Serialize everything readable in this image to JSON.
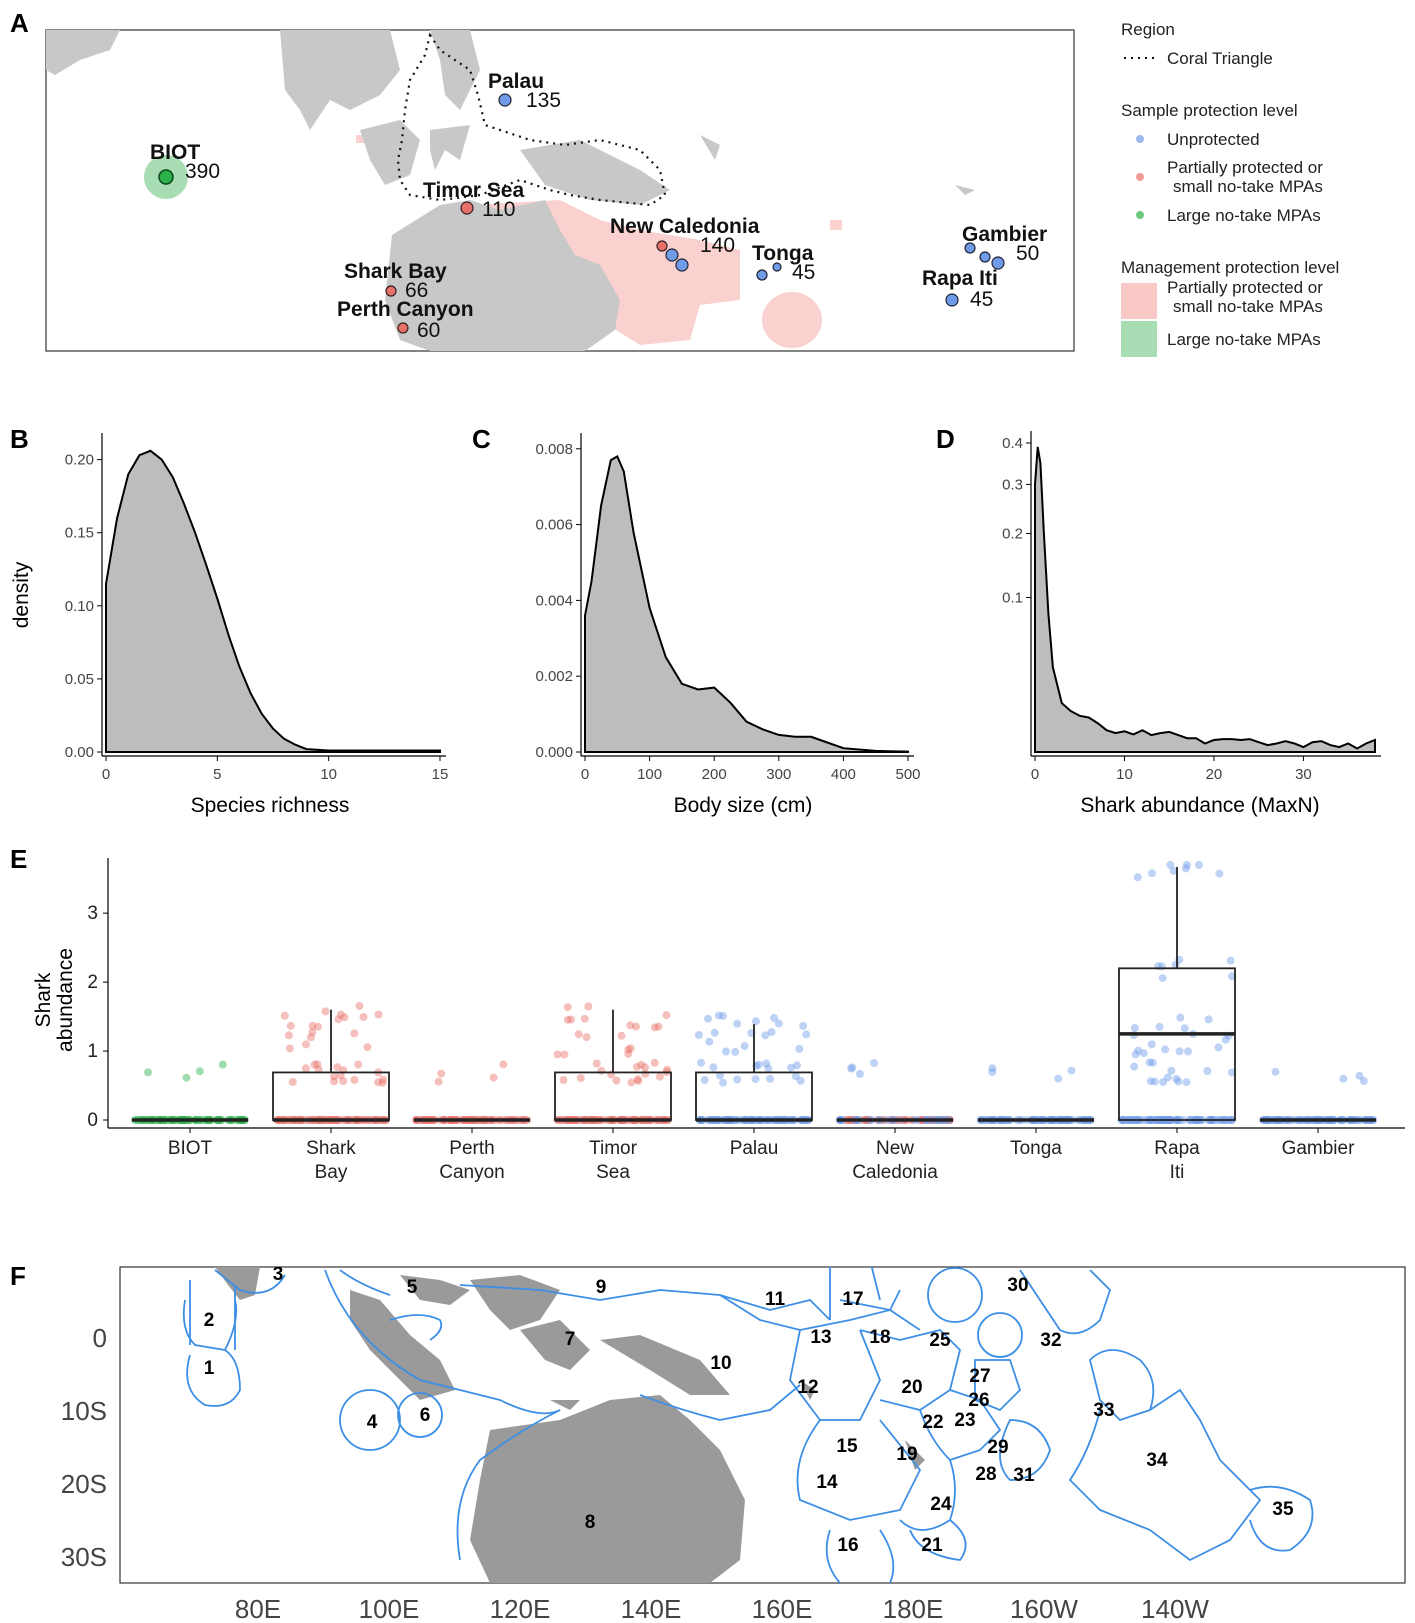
{
  "panel_labels": [
    "A",
    "B",
    "C",
    "D",
    "E",
    "F"
  ],
  "colors": {
    "unprotected": "#6f9be8",
    "partial": "#e8706b",
    "large": "#2cb24a",
    "partial_fill": "#f9c9c7",
    "large_fill": "#a8dcb2",
    "land": "#c8c8c8",
    "land_f": "#9a9a9a",
    "eco_line": "#3d8fe6",
    "density_fill": "#bdbdbd"
  },
  "legend": {
    "region_title": "Region",
    "region_item": "Coral Triangle",
    "sample_title": "Sample protection level",
    "sample_items": [
      "Unprotected",
      "Partially protected or",
      "small no-take MPAs",
      "Large no-take MPAs"
    ],
    "mgmt_title": "Management protection level",
    "mgmt_items": [
      "Partially protected or",
      "small no-take MPAs",
      "Large no-take MPAs"
    ]
  },
  "map_sites": [
    {
      "name": "BIOT",
      "count": "390",
      "protection": "large"
    },
    {
      "name": "Palau",
      "count": "135",
      "protection": "unprotected"
    },
    {
      "name": "Timor Sea",
      "count": "110",
      "protection": "partial"
    },
    {
      "name": "New Caledonia",
      "count": "140",
      "protection": "mixed"
    },
    {
      "name": "Tonga",
      "count": "45",
      "protection": "unprotected"
    },
    {
      "name": "Gambier",
      "count": "50",
      "protection": "unprotected"
    },
    {
      "name": "Rapa Iti",
      "count": "45",
      "protection": "unprotected"
    },
    {
      "name": "Shark Bay",
      "count": "66",
      "protection": "partial"
    },
    {
      "name": "Perth Canyon",
      "count": "60",
      "protection": "partial"
    }
  ],
  "chart_data": [
    {
      "type": "area",
      "panel": "B",
      "xlabel": "Species richness",
      "ylabel": "density",
      "xticks": [
        "0",
        "5",
        "10",
        "15"
      ],
      "yticks": [
        "0.00",
        "0.05",
        "0.10",
        "0.15",
        "0.20"
      ],
      "xlim": [
        0,
        15
      ],
      "ylim": [
        0,
        0.21
      ],
      "x": [
        0,
        0.5,
        1,
        1.5,
        2,
        2.5,
        3,
        3.5,
        4,
        4.5,
        5,
        5.5,
        6,
        6.5,
        7,
        7.5,
        8,
        8.5,
        9,
        10,
        11,
        12,
        13,
        14,
        15
      ],
      "y": [
        0.115,
        0.16,
        0.19,
        0.203,
        0.206,
        0.2,
        0.188,
        0.17,
        0.15,
        0.128,
        0.105,
        0.08,
        0.058,
        0.04,
        0.026,
        0.016,
        0.009,
        0.005,
        0.002,
        0.001,
        0.001,
        0.001,
        0.001,
        0.001,
        0.001
      ]
    },
    {
      "type": "area",
      "panel": "C",
      "xlabel": "Body size (cm)",
      "ylabel": "",
      "xticks": [
        "0",
        "100",
        "200",
        "300",
        "400",
        "500"
      ],
      "yticks": [
        "0.000",
        "0.002",
        "0.004",
        "0.006",
        "0.008"
      ],
      "xlim": [
        0,
        500
      ],
      "ylim": [
        0,
        0.0081
      ],
      "x": [
        0,
        10,
        25,
        40,
        50,
        60,
        75,
        100,
        125,
        150,
        175,
        200,
        225,
        250,
        275,
        300,
        325,
        350,
        375,
        400,
        450,
        500
      ],
      "y": [
        0.0036,
        0.0045,
        0.0065,
        0.0077,
        0.0078,
        0.0074,
        0.0058,
        0.0038,
        0.0025,
        0.0018,
        0.00165,
        0.0017,
        0.0013,
        0.0008,
        0.0006,
        0.00045,
        0.0004,
        0.0004,
        0.00025,
        0.0001,
        3e-05,
        1e-05
      ]
    },
    {
      "type": "area",
      "panel": "D",
      "xlabel": "Shark abundance (MaxN)",
      "ylabel": "",
      "xticks": [
        "0",
        "10",
        "20",
        "30"
      ],
      "yticks": [
        "0.1",
        "0.2",
        "0.3",
        "0.4"
      ],
      "xlim": [
        0,
        38
      ],
      "ylim": [
        0,
        0.4
      ],
      "scale": "sqrt",
      "x": [
        0,
        0.3,
        0.6,
        1,
        1.5,
        2,
        3,
        4,
        5,
        6,
        7,
        8,
        9,
        10,
        11,
        12,
        13,
        14,
        15,
        16,
        17,
        18,
        19,
        20,
        21,
        22,
        23,
        24,
        25,
        26,
        27,
        28,
        29,
        30,
        31,
        32,
        33,
        34,
        35,
        36,
        37,
        38
      ],
      "y": [
        0.3,
        0.39,
        0.35,
        0.2,
        0.08,
        0.03,
        0.01,
        0.007,
        0.0055,
        0.005,
        0.0035,
        0.002,
        0.0015,
        0.0018,
        0.0013,
        0.002,
        0.0012,
        0.0015,
        0.0017,
        0.0012,
        0.0008,
        0.0008,
        0.0003,
        0.0006,
        0.0007,
        0.0007,
        0.0006,
        0.0007,
        0.0004,
        0.0002,
        0.0003,
        0.0005,
        0.0003,
        0.0001,
        0.0004,
        0.0005,
        0.0002,
        0.0001,
        0.0003,
        5e-05,
        0.0003,
        0.0006
      ]
    },
    {
      "type": "box",
      "panel": "E",
      "ylabel": "Shark abundance",
      "yticks": [
        "0",
        "1",
        "2",
        "3"
      ],
      "ylim": [
        0,
        3.8
      ],
      "scale": "sqrt-transformed",
      "categories": [
        "BIOT",
        "Shark\nBay",
        "Perth\nCanyon",
        "Timor\nSea",
        "Palau",
        "New\nCaledonia",
        "Tonga",
        "Rapa\nIti",
        "Gambier"
      ],
      "boxes": [
        {
          "q1": 0,
          "median": 0,
          "q3": 0,
          "whisker_high": 0
        },
        {
          "q1": 0,
          "median": 0,
          "q3": 0.69,
          "whisker_high": 1.6
        },
        {
          "q1": 0,
          "median": 0,
          "q3": 0,
          "whisker_high": 0
        },
        {
          "q1": 0,
          "median": 0,
          "q3": 0.69,
          "whisker_high": 1.6
        },
        {
          "q1": 0,
          "median": 0,
          "q3": 0.69,
          "whisker_high": 1.39
        },
        {
          "q1": 0,
          "median": 0,
          "q3": 0,
          "whisker_high": 0
        },
        {
          "q1": 0,
          "median": 0,
          "q3": 0,
          "whisker_high": 0
        },
        {
          "q1": 0,
          "median": 1.25,
          "q3": 2.2,
          "whisker_high": 3.67
        },
        {
          "q1": 0,
          "median": 0,
          "q3": 0,
          "whisker_high": 0
        }
      ]
    },
    {
      "type": "map",
      "panel": "F",
      "xticks": [
        "80E",
        "100E",
        "120E",
        "140E",
        "160E",
        "180E",
        "160W",
        "140W"
      ],
      "yticks": [
        "0",
        "10S",
        "20S",
        "30S"
      ],
      "region_numbers": [
        "1",
        "2",
        "3",
        "4",
        "5",
        "6",
        "7",
        "8",
        "9",
        "10",
        "11",
        "12",
        "13",
        "14",
        "15",
        "16",
        "17",
        "18",
        "19",
        "20",
        "21",
        "22",
        "23",
        "24",
        "25",
        "26",
        "27",
        "28",
        "29",
        "30",
        "31",
        "32",
        "33",
        "34",
        "35"
      ]
    }
  ]
}
